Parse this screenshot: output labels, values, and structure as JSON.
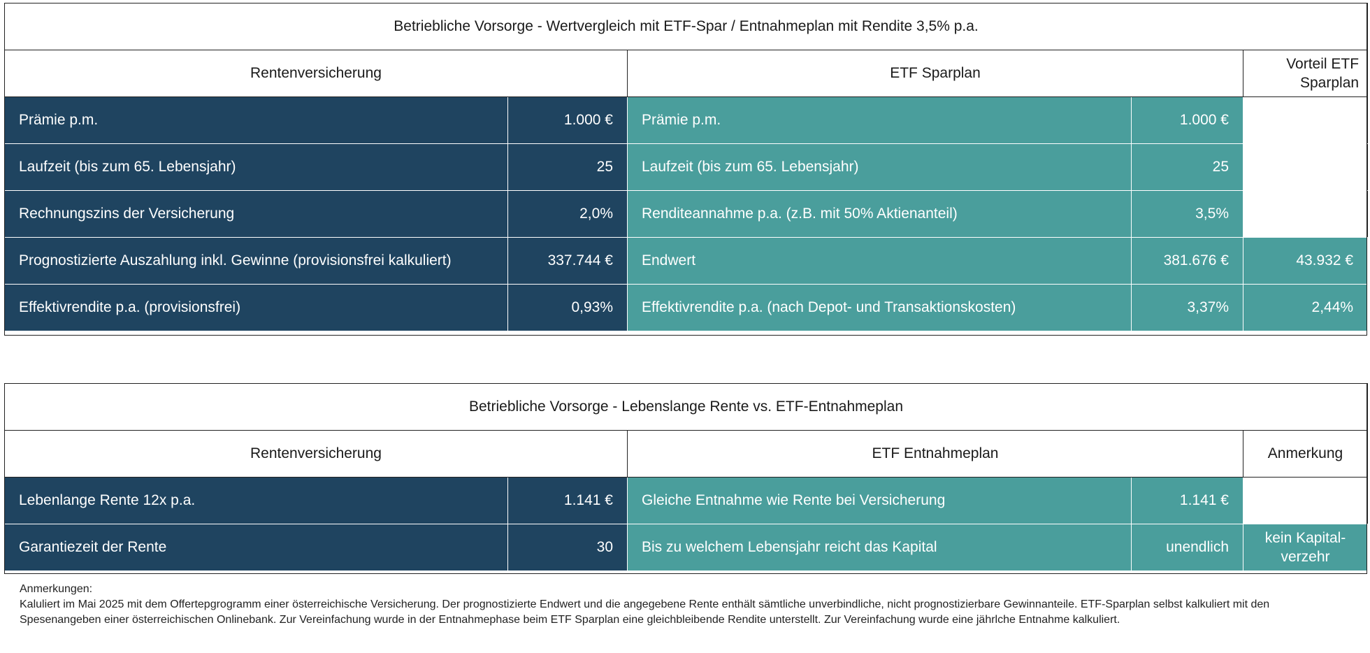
{
  "table1": {
    "title": "Betriebliche Vorsorge - Wertvergleich mit ETF-Spar / Entnahmeplan mit Rendite 3,5% p.a.",
    "head_left": "Rentenversicherung",
    "head_mid": "ETF Sparplan",
    "head_right": "Vorteil ETF Sparplan",
    "rows": [
      {
        "left_label": "Prämie p.m.",
        "left_value": "1.000 €",
        "right_label": "Prämie p.m.",
        "right_value": "1.000 €",
        "advantage": ""
      },
      {
        "left_label": "Laufzeit (bis zum 65. Lebensjahr)",
        "left_value": "25",
        "right_label": "Laufzeit (bis zum 65. Lebensjahr)",
        "right_value": "25",
        "advantage": ""
      },
      {
        "left_label": "Rechnungszins der Versicherung",
        "left_value": "2,0%",
        "right_label": "Renditeannahme p.a. (z.B. mit 50% Aktienanteil)",
        "right_value": "3,5%",
        "advantage": ""
      },
      {
        "left_label": "Prognostizierte Auszahlung inkl. Gewinne (provisionsfrei kalkuliert)",
        "left_value": "337.744 €",
        "right_label": "Endwert",
        "right_value": "381.676 €",
        "advantage": "43.932 €"
      },
      {
        "left_label": "Effektivrendite p.a. (provisionsfrei)",
        "left_value": "0,93%",
        "right_label": "Effektivrendite p.a. (nach Depot- und Transaktionskosten)",
        "right_value": "3,37%",
        "advantage": "2,44%"
      }
    ]
  },
  "table2": {
    "title": "Betriebliche Vorsorge - Lebenslange Rente vs. ETF-Entnahmeplan",
    "head_left": "Rentenversicherung",
    "head_mid": "ETF Entnahmeplan",
    "head_right": "Anmerkung",
    "rows": [
      {
        "left_label": "Lebenlange Rente 12x p.a.",
        "left_value": "1.141 €",
        "right_label": "Gleiche Entnahme wie Rente bei Versicherung",
        "right_value": "1.141 €",
        "note": ""
      },
      {
        "left_label": "Garantiezeit der Rente",
        "left_value": "30",
        "right_label": "Bis zu welchem Lebensjahr reicht das Kapital",
        "right_value": "unendlich",
        "note": "kein Kapital-verzehr"
      }
    ]
  },
  "notes": {
    "heading": "Anmerkungen:",
    "text": "Kaluliert im Mai 2025 mit dem Offertepgrogramm einer österreichische Versicherung. Der prognostizierte Endwert und die angegebene Rente enthält sämtliche unverbindliche, nicht prognostizierbare Gewinnanteile. ETF-Sparplan selbst kalkuliert mit den Spesenangeben einer österreichischen Onlinebank. Zur Vereinfachung wurde in der Entnahmephase beim ETF Sparplan eine gleichbleibende Rendite unterstellt. Zur Vereinfachung wurde eine jährlche Entnahme kalkuliert."
  },
  "colors": {
    "dark": "#1f4460",
    "teal": "#4a9e9c"
  }
}
